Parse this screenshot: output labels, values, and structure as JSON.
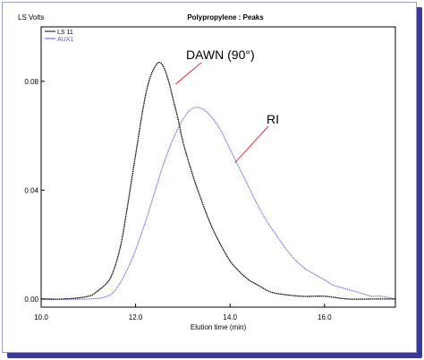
{
  "chart_data": {
    "type": "line",
    "title": "Polypropylene  :  Peaks",
    "ylabel": "LS Volts",
    "xlabel": "Elution time (min)",
    "xlim": [
      10.0,
      17.5
    ],
    "ylim": [
      -0.003,
      0.1
    ],
    "x_ticks": [
      "10.0",
      "12.0",
      "14.0",
      "16.0"
    ],
    "y_ticks": [
      "0.00",
      "0.04",
      "0.08"
    ],
    "grid": false,
    "legend_position": "top-left",
    "colors": {
      "ls11": "#000000",
      "aux1": "#5a5ad8",
      "annotation": "#e03030"
    },
    "series": [
      {
        "name": "LS 11",
        "x": [
          10.0,
          10.5,
          11.0,
          11.2,
          11.4,
          11.5,
          11.6,
          11.7,
          11.8,
          11.9,
          12.0,
          12.1,
          12.2,
          12.3,
          12.4,
          12.5,
          12.6,
          12.7,
          12.8,
          12.9,
          13.0,
          13.2,
          13.4,
          13.6,
          13.8,
          14.0,
          14.2,
          14.4,
          14.6,
          14.8,
          15.0,
          15.5,
          16.0,
          16.5,
          17.0,
          17.5
        ],
        "values": [
          0.0,
          0.0,
          0.001,
          0.003,
          0.006,
          0.009,
          0.014,
          0.021,
          0.031,
          0.042,
          0.053,
          0.064,
          0.074,
          0.081,
          0.085,
          0.087,
          0.085,
          0.08,
          0.073,
          0.066,
          0.058,
          0.046,
          0.036,
          0.027,
          0.02,
          0.014,
          0.01,
          0.007,
          0.005,
          0.003,
          0.002,
          0.001,
          0.001,
          0.0,
          0.0,
          0.0
        ]
      },
      {
        "name": "AUX1",
        "x": [
          10.0,
          11.0,
          11.4,
          11.6,
          11.8,
          12.0,
          12.2,
          12.4,
          12.6,
          12.8,
          13.0,
          13.2,
          13.4,
          13.6,
          13.8,
          14.0,
          14.2,
          14.4,
          14.6,
          14.8,
          15.0,
          15.2,
          15.4,
          15.6,
          15.8,
          16.0,
          16.2,
          16.4,
          16.6,
          16.8,
          17.0,
          17.2,
          17.5
        ],
        "values": [
          0.0,
          0.0,
          0.001,
          0.004,
          0.01,
          0.018,
          0.028,
          0.039,
          0.05,
          0.059,
          0.066,
          0.07,
          0.07,
          0.067,
          0.062,
          0.055,
          0.048,
          0.041,
          0.034,
          0.028,
          0.023,
          0.018,
          0.014,
          0.011,
          0.009,
          0.007,
          0.005,
          0.004,
          0.003,
          0.002,
          0.001,
          0.001,
          0.0
        ]
      }
    ],
    "annotations": [
      {
        "text": "DAWN (90°)",
        "target_x": 12.85,
        "target_y": 0.079
      },
      {
        "text": "RI",
        "target_x": 14.1,
        "target_y": 0.05
      }
    ]
  }
}
